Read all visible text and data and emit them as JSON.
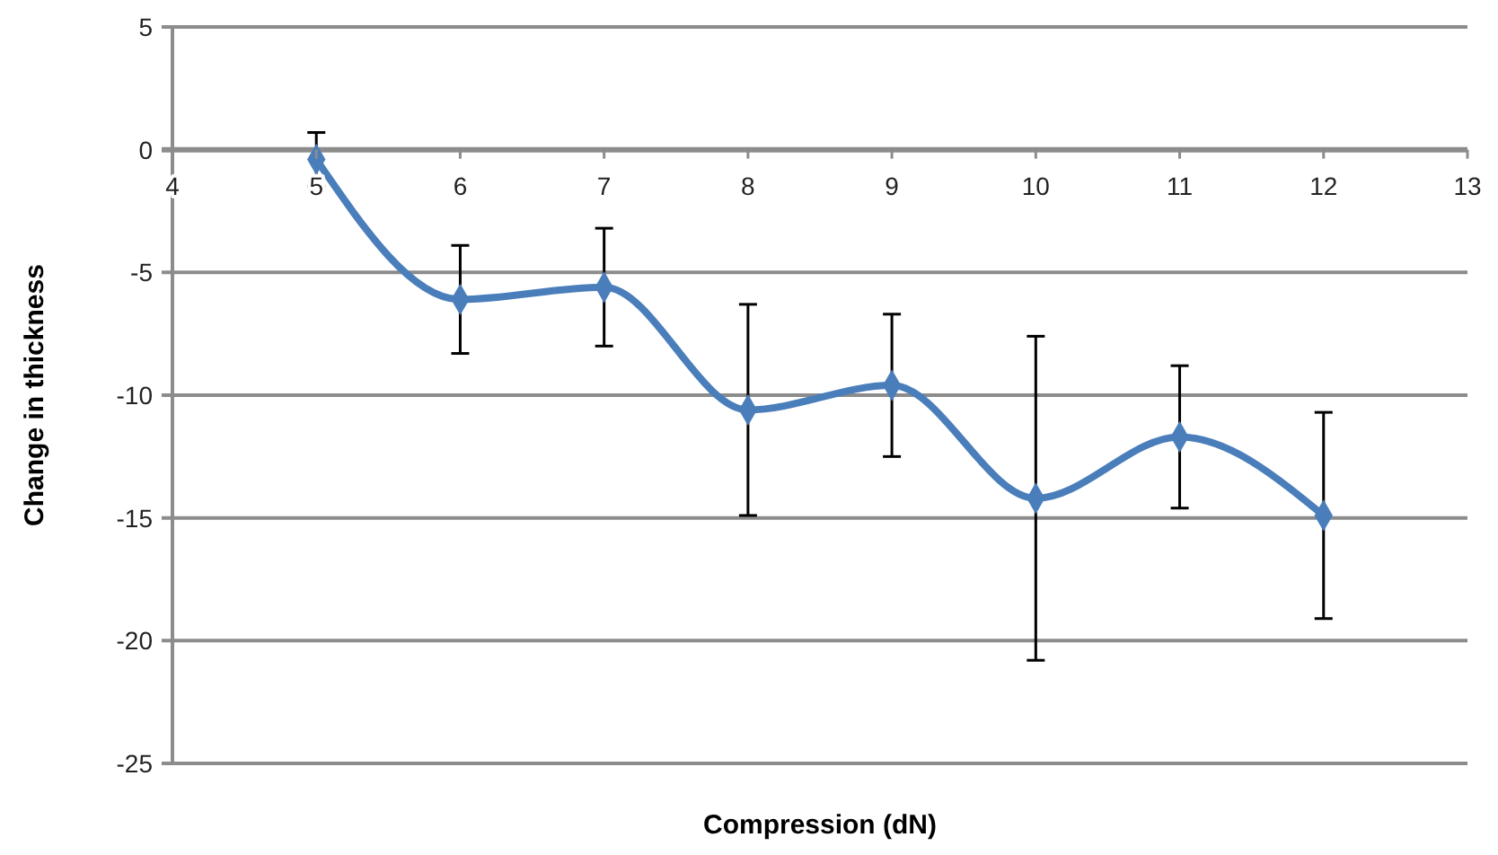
{
  "chart_data": {
    "type": "line",
    "xlabel": "Compression (dN)",
    "ylabel": "Change in thickness",
    "x": [
      5,
      6,
      7,
      8,
      9,
      10,
      11,
      12
    ],
    "series": [
      {
        "color": "#4a7ebb",
        "values": [
          -0.4,
          -6.1,
          -5.6,
          -10.6,
          -9.6,
          -14.2,
          -11.7,
          -14.9
        ],
        "errors": [
          1.1,
          2.2,
          2.4,
          4.3,
          2.9,
          6.6,
          2.9,
          4.2
        ]
      }
    ],
    "xlim": [
      4,
      13
    ],
    "xticks": [
      4,
      5,
      6,
      7,
      8,
      9,
      10,
      11,
      12,
      13
    ],
    "ylim": [
      -25,
      5
    ],
    "yticks": [
      -25,
      -20,
      -15,
      -10,
      -5,
      0,
      5
    ],
    "grid": "y",
    "marker": "diamond",
    "line_style": "solid"
  }
}
